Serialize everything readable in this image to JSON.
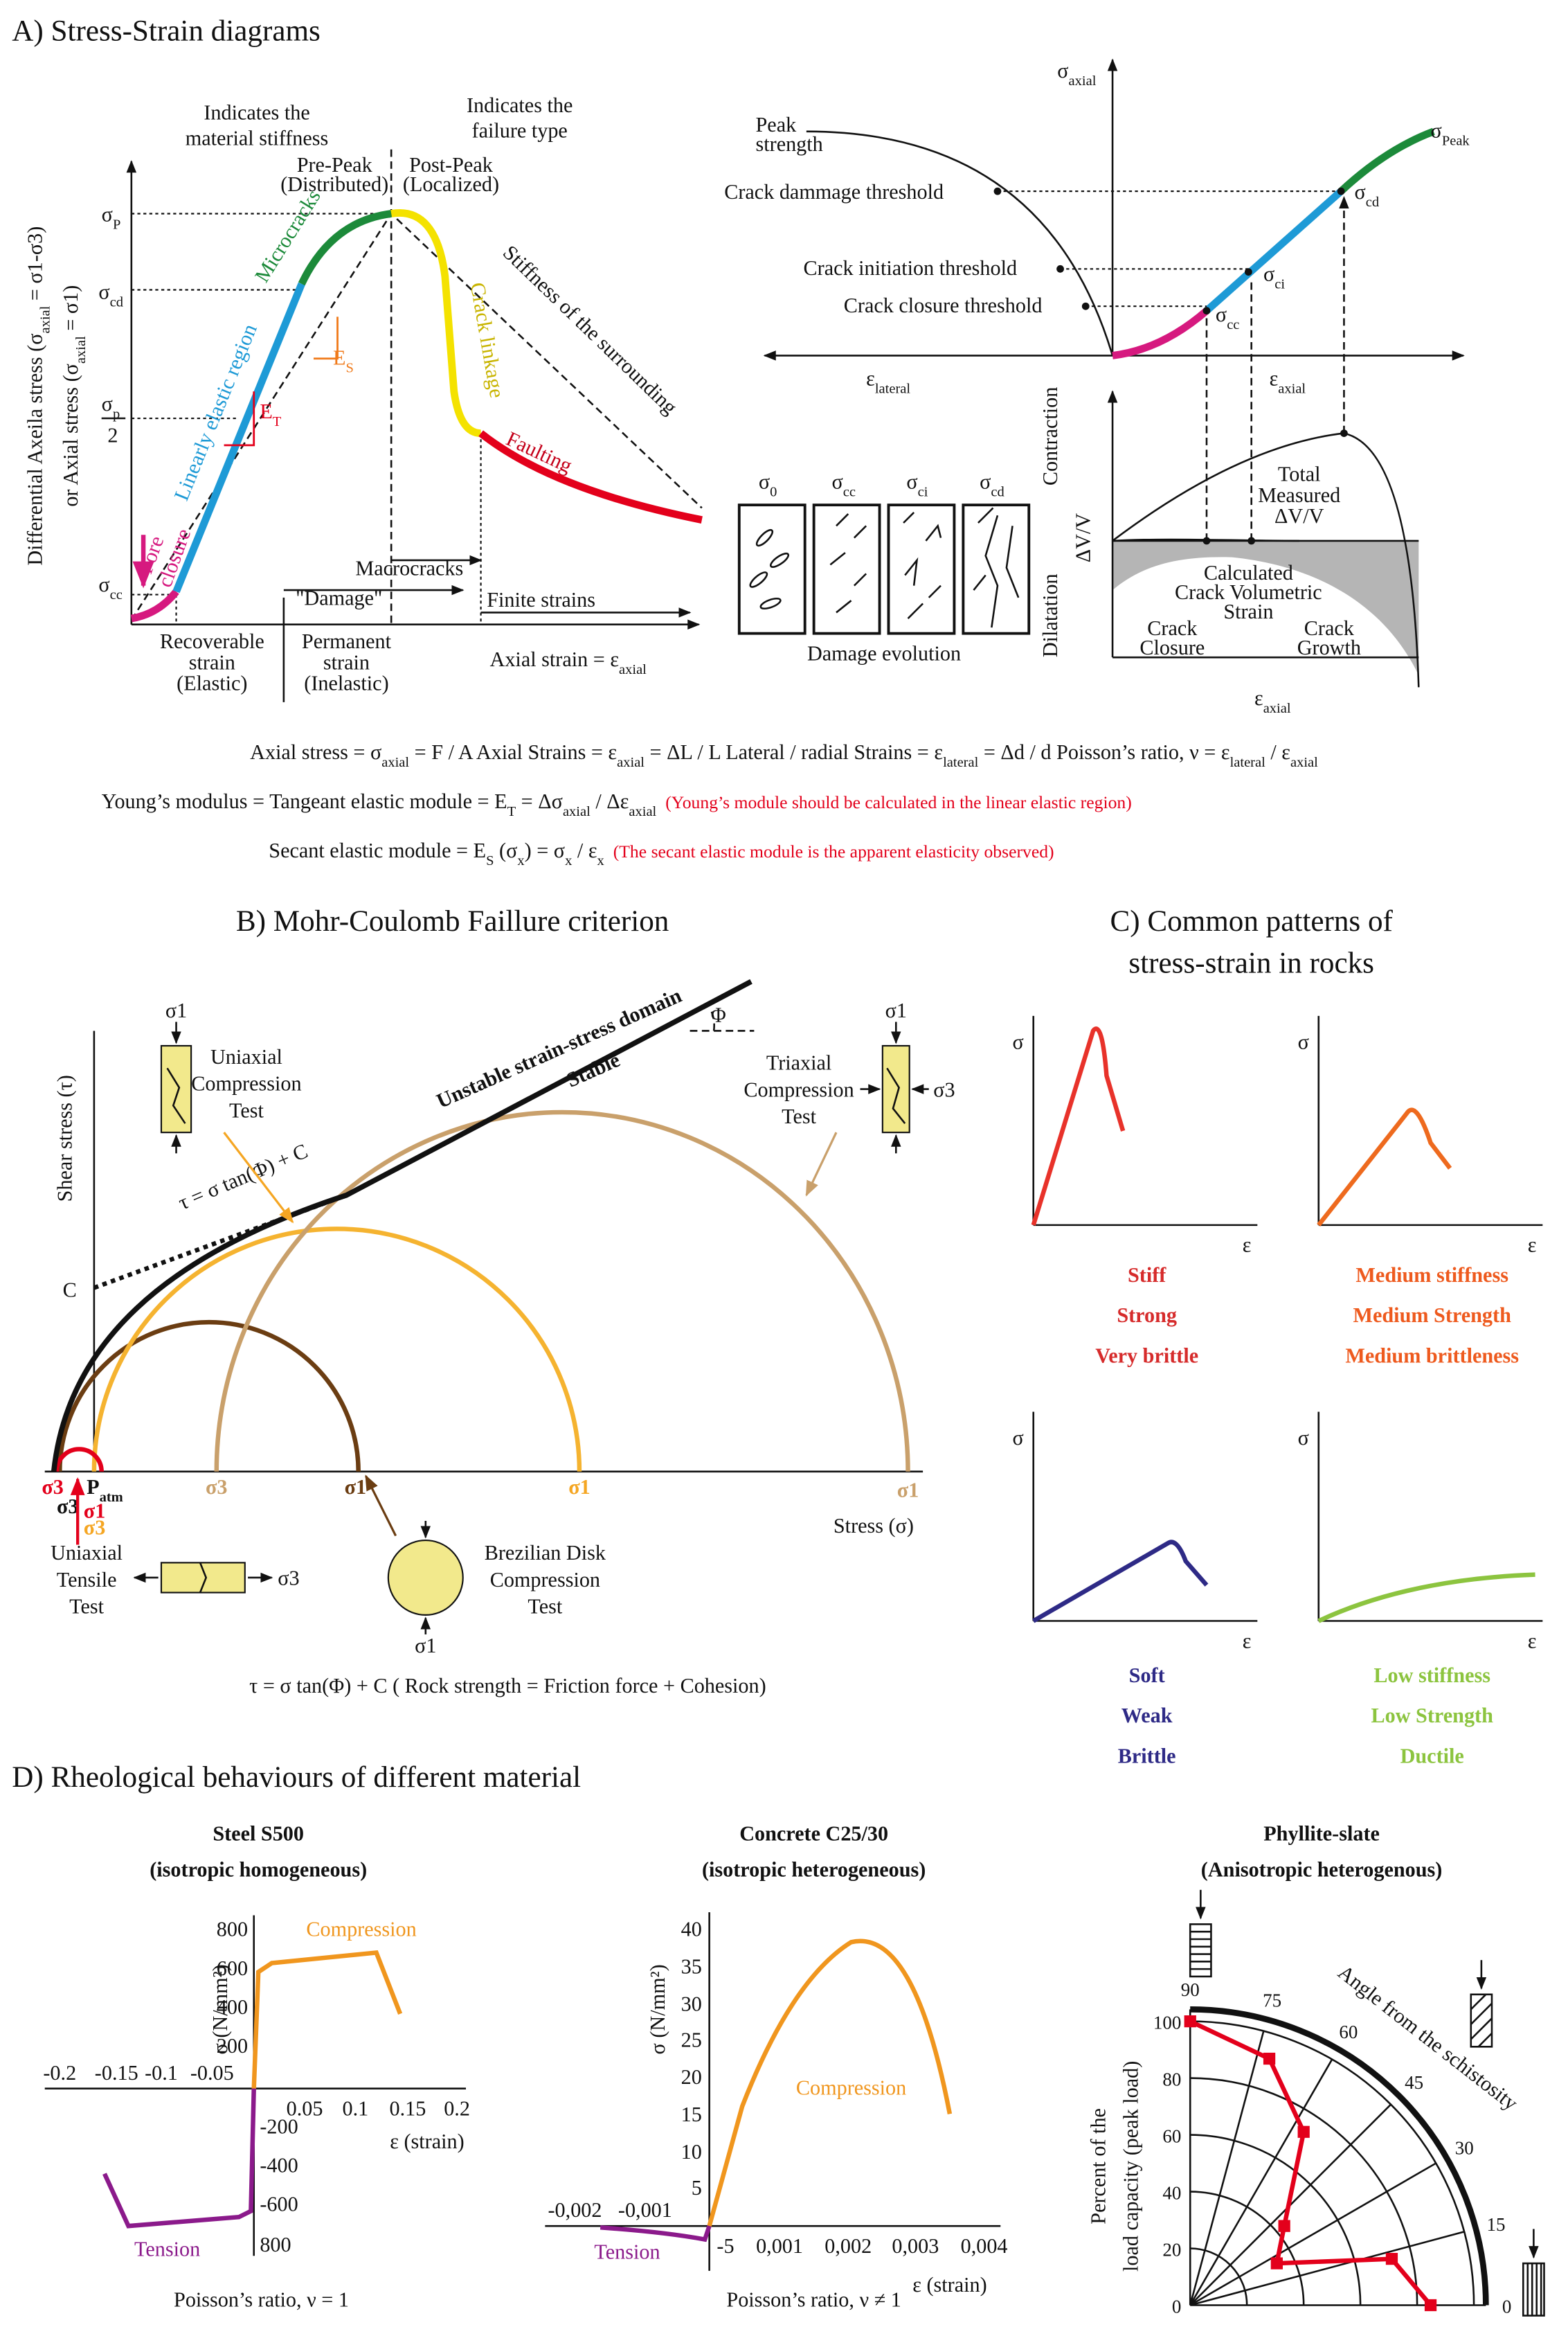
{
  "panel_a": {
    "title": "A) Stress-Strain diagrams",
    "y_label": [
      [
        "Differential Axeila stress (σ",
        "axial",
        " = σ1-σ3)"
      ],
      [
        "or Axial stress (σ",
        "axial",
        " = σ1)"
      ]
    ],
    "stiffness_note": [
      "Indicates the",
      "material stiffness"
    ],
    "failure_note": [
      "Indicates the",
      "failure type"
    ],
    "pre_peak": [
      "Pre-Peak",
      "(Distributed)"
    ],
    "post_peak": [
      "Post-Peak",
      "(Localized)"
    ],
    "sigma_p": [
      "σ",
      "P"
    ],
    "sigma_cd": [
      "σ",
      "cd"
    ],
    "sigma_half": [
      "σ",
      "p"
    ],
    "half_denominator": "2",
    "sigma_cc": [
      "σ",
      "cc"
    ],
    "microcracks": "Microcracks",
    "linear_region": "Linearly elastic region",
    "pore_closure": [
      "Pore",
      "closure"
    ],
    "crack_linkage": "Crack linkage",
    "faulting": "Faulting",
    "surrounding": "Stiffness of the surrounding",
    "e_s": [
      "E",
      "S"
    ],
    "e_t": [
      "E",
      "T"
    ],
    "macrocracks": "Macrocracks",
    "damage": "\"Damage\"",
    "finite_strains": "Finite strains",
    "recoverable": [
      "Recoverable",
      "strain",
      "(Elastic)"
    ],
    "permanent": [
      "Permanent",
      "strain",
      "(Inelastic)"
    ],
    "x_label": [
      "Axial strain = ε",
      "axial"
    ]
  },
  "thresholds": {
    "sigma_axial": [
      "σ",
      "axial"
    ],
    "peak_strength": [
      "Peak",
      "strength"
    ],
    "damage_threshold": "Crack dammage threshold",
    "initiation_threshold": "Crack initiation threshold",
    "closure_threshold": "Crack closure threshold",
    "sigma_peak": [
      "σ",
      "Peak"
    ],
    "sigma_cd": [
      "σ",
      "cd"
    ],
    "sigma_ci": [
      "σ",
      "ci"
    ],
    "sigma_cc": [
      "σ",
      "cc"
    ],
    "eps_lateral": [
      "ε",
      "lateral"
    ],
    "eps_axial": [
      "ε",
      "axial"
    ],
    "contraction": "Contraction",
    "dv_v": "ΔV/V",
    "dilatation": "Dilatation",
    "total": [
      "Total",
      "Measured",
      "ΔV/V"
    ],
    "calculated": [
      "Calculated",
      "Crack Volumetric",
      "Strain"
    ],
    "closure": [
      "Crack",
      "Closure"
    ],
    "growth": [
      "Crack",
      "Growth"
    ],
    "eps_axial_bottom": [
      "ε",
      "axial"
    ],
    "damage_stages": [
      [
        "σ",
        "0"
      ],
      [
        "σ",
        "cc"
      ],
      [
        "σ",
        "ci"
      ],
      [
        "σ",
        "cd"
      ]
    ],
    "damage_evolution": "Damage evolution"
  },
  "equations": {
    "line_1": [
      "Axial stress = σ",
      "axial",
      " = F / A     Axial Strains = ε",
      "axial",
      " = ΔL / L   Lateral / radial Strains = ε",
      "lateral",
      " = Δd / d     Poisson’s ratio, ν = ε",
      "lateral",
      " / ε",
      "axial"
    ],
    "line_2": [
      "Young’s modulus = Tangeant elastic module = E",
      "T",
      " = Δσ",
      "axial",
      " / Δε",
      "axial"
    ],
    "note_2": "(Young’s module should be calculated in the linear elastic region)",
    "line_3": [
      "Secant elastic module  = E",
      "S",
      " (σ",
      "x",
      ") = σ",
      "x",
      " / ε",
      "x"
    ],
    "note_3": "(The secant elastic module is the apparent elasticity observed)"
  },
  "panel_b": {
    "title": "B) Mohr-Coulomb Faillure criterion",
    "y_label": "Shear stress (τ)",
    "cohesion": "C",
    "criterion": "τ = σ tan(Φ) + C",
    "unstable": "Unstable strain-stress domain",
    "stable": "Stable",
    "phi": "Φ",
    "uniaxial_compression": {
      "sigma": "σ1",
      "lines": [
        "Uniaxial",
        "Compression",
        "Test"
      ]
    },
    "triaxial": {
      "sigma_top": "σ1",
      "sigma_side": "σ3",
      "lines": [
        "Triaxial",
        "Compression",
        "Test"
      ]
    },
    "axis_labels": {
      "red_s3": "σ3",
      "p_atm": [
        "P",
        "atm"
      ],
      "dark_s3": "σ3",
      "red_s1": "σ1",
      "orange_s3": "σ3",
      "tan_s3": "σ3",
      "brown_s1": "σ1",
      "orange_s1": "σ1",
      "tan_s1": "σ1"
    },
    "x_label": "Stress (σ)",
    "tensile": {
      "sigma": "σ3",
      "lines": [
        "Uniaxial",
        "Tensile",
        "Test"
      ]
    },
    "brazilian": {
      "sigma": "σ1",
      "lines": [
        "Brezilian Disk",
        "Compression",
        "Test"
      ]
    },
    "caption": "τ = σ tan(Φ) + C ( Rock strength = Friction force + Cohesion)"
  },
  "panel_c": {
    "title": [
      "C) Common patterns of",
      "stress-strain in rocks"
    ],
    "plots": [
      {
        "sigma": "σ",
        "eps": "ε",
        "labels": [
          "Stiff",
          "Strong",
          "Very brittle"
        ]
      },
      {
        "sigma": "σ",
        "eps": "ε",
        "labels": [
          "Medium stiffness",
          "Medium Strength",
          "Medium brittleness"
        ]
      },
      {
        "sigma": "σ",
        "eps": "ε",
        "labels": [
          "Soft",
          "Weak",
          "Brittle"
        ]
      },
      {
        "sigma": "σ",
        "eps": "ε",
        "labels": [
          "Low stiffness",
          "Low Strength",
          "Ductile"
        ]
      }
    ]
  },
  "panel_d": {
    "title": "D) Rheological behaviours of different material",
    "steel": {
      "title": [
        "Steel S500",
        "(isotropic homogeneous)"
      ],
      "y_ticks": [
        800,
        600,
        400,
        200,
        -200,
        -400,
        -600,
        800
      ],
      "x_ticks": [
        -0.2,
        -0.15,
        -0.1,
        -0.05,
        0.05,
        0.1,
        0.15,
        0.2
      ],
      "y_label": "σ (N/mm²)",
      "x_label": "ε (strain)",
      "compression": "Compression",
      "tension": "Tension",
      "poisson": "Poisson’s ratio, ν = 1"
    },
    "concrete": {
      "title": [
        "Concrete C25/30",
        "(isotropic heterogeneous)"
      ],
      "y_ticks": [
        40,
        35,
        30,
        25,
        20,
        15,
        10,
        5,
        -5
      ],
      "x_ticks": [
        "-0,002",
        "-0,001",
        "0,001",
        "0,002",
        "0,003",
        "0,004"
      ],
      "y_label": "σ (N/mm²)",
      "x_label": "ε (strain)",
      "compression": "Compression",
      "tension": "Tension",
      "poisson": "Poisson’s ratio, ν ≠ 1"
    },
    "phyllite": {
      "title": [
        "Phyllite-slate",
        "(Anisotropic heterogenous)"
      ],
      "radial_ticks": [
        100,
        80,
        60,
        40,
        20,
        0
      ],
      "angle_ticks": [
        90,
        75,
        60,
        45,
        30,
        15,
        0
      ],
      "angle_label": "Angle from the schistosity",
      "y_label": [
        "Percent of the",
        "load capacity (peak load)"
      ]
    }
  }
}
